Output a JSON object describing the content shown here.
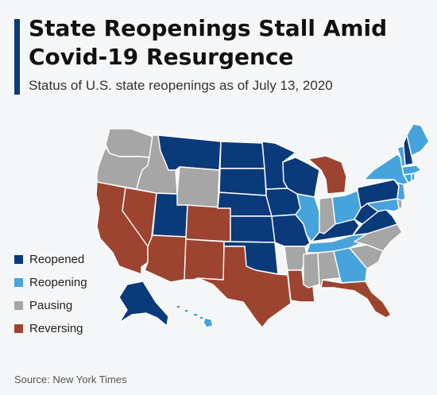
{
  "title": "State Reopenings Stall Amid Covid-19 Resurgence",
  "subtitle": "Status of U.S. state reopenings as of July 13, 2020",
  "source": "Source: New York Times",
  "colors": {
    "reopened": "#0b3a7a",
    "reopening": "#47a3dc",
    "pausing": "#a6a6a6",
    "reversing": "#9c4430",
    "accent": "#0b3a7a"
  },
  "legend": [
    {
      "label": "Reopened",
      "status": "reopened"
    },
    {
      "label": "Reopening",
      "status": "reopening"
    },
    {
      "label": "Pausing",
      "status": "pausing"
    },
    {
      "label": "Reversing",
      "status": "reversing"
    }
  ],
  "states": [
    {
      "name": "Washington",
      "status": "pausing"
    },
    {
      "name": "Oregon",
      "status": "pausing"
    },
    {
      "name": "California",
      "status": "reversing"
    },
    {
      "name": "Nevada",
      "status": "reversing"
    },
    {
      "name": "Idaho",
      "status": "pausing"
    },
    {
      "name": "Montana",
      "status": "reopened"
    },
    {
      "name": "Wyoming",
      "status": "pausing"
    },
    {
      "name": "Utah",
      "status": "reopened"
    },
    {
      "name": "Colorado",
      "status": "reversing"
    },
    {
      "name": "Arizona",
      "status": "reversing"
    },
    {
      "name": "New Mexico",
      "status": "reversing"
    },
    {
      "name": "North Dakota",
      "status": "reopened"
    },
    {
      "name": "South Dakota",
      "status": "reopened"
    },
    {
      "name": "Nebraska",
      "status": "reopened"
    },
    {
      "name": "Kansas",
      "status": "reopened"
    },
    {
      "name": "Oklahoma",
      "status": "reopened"
    },
    {
      "name": "Texas",
      "status": "reversing"
    },
    {
      "name": "Minnesota",
      "status": "reopened"
    },
    {
      "name": "Iowa",
      "status": "reopened"
    },
    {
      "name": "Missouri",
      "status": "reopened"
    },
    {
      "name": "Arkansas",
      "status": "pausing"
    },
    {
      "name": "Louisiana",
      "status": "reversing"
    },
    {
      "name": "Wisconsin",
      "status": "reopened"
    },
    {
      "name": "Illinois",
      "status": "reopening"
    },
    {
      "name": "Michigan",
      "status": "reversing"
    },
    {
      "name": "Indiana",
      "status": "pausing"
    },
    {
      "name": "Ohio",
      "status": "reopening"
    },
    {
      "name": "Kentucky",
      "status": "reopened"
    },
    {
      "name": "Tennessee",
      "status": "reopening"
    },
    {
      "name": "Mississippi",
      "status": "pausing"
    },
    {
      "name": "Alabama",
      "status": "pausing"
    },
    {
      "name": "Georgia",
      "status": "reopening"
    },
    {
      "name": "Florida",
      "status": "reversing"
    },
    {
      "name": "South Carolina",
      "status": "pausing"
    },
    {
      "name": "North Carolina",
      "status": "pausing"
    },
    {
      "name": "Virginia",
      "status": "reopened"
    },
    {
      "name": "West Virginia",
      "status": "reopened"
    },
    {
      "name": "Pennsylvania",
      "status": "reopened"
    },
    {
      "name": "New York",
      "status": "reopening"
    },
    {
      "name": "New Jersey",
      "status": "reopening"
    },
    {
      "name": "Delaware",
      "status": "pausing"
    },
    {
      "name": "Maryland",
      "status": "reopening"
    },
    {
      "name": "Connecticut",
      "status": "reopening"
    },
    {
      "name": "Rhode Island",
      "status": "reopening"
    },
    {
      "name": "Massachusetts",
      "status": "reopening"
    },
    {
      "name": "Vermont",
      "status": "reopening"
    },
    {
      "name": "New Hampshire",
      "status": "reopened"
    },
    {
      "name": "Maine",
      "status": "reopening"
    },
    {
      "name": "Alaska",
      "status": "reopened"
    },
    {
      "name": "Hawaii",
      "status": "reopening"
    }
  ]
}
